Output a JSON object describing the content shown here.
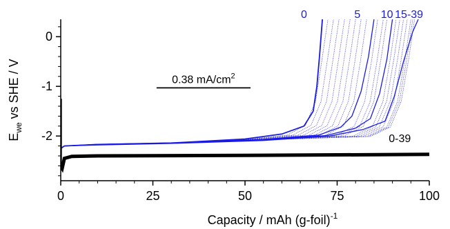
{
  "chart_data": {
    "type": "line",
    "xlabel": "Capacity / mAh (g-foil)",
    "xlabel_sup": "-1",
    "ylabel_main": "E",
    "ylabel_sub": "we",
    "ylabel_rest": " vs SHE / V",
    "xlim": [
      0,
      100
    ],
    "ylim": [
      -2.9,
      0.35
    ],
    "x_ticks": [
      0,
      25,
      50,
      75,
      100
    ],
    "x_tick_labels": [
      "0",
      "25",
      "50",
      "75",
      "100"
    ],
    "y_ticks": [
      0,
      -1,
      -2
    ],
    "y_tick_labels": [
      "0",
      "-1",
      "-2"
    ],
    "grid": false,
    "colors": {
      "blue": "#1a1ae6",
      "black": "#000000"
    },
    "scale_bar": {
      "label_main": "0.38 mA/cm",
      "label_sup": "2",
      "x_start": 26,
      "x_end": 51.5,
      "y": -1.03
    },
    "series": [
      {
        "label": "0",
        "color": "#1a1ae6",
        "end_capacity": 71,
        "points": [
          [
            0,
            -2.25
          ],
          [
            1,
            -2.2
          ],
          [
            10,
            -2.17
          ],
          [
            30,
            -2.14
          ],
          [
            50,
            -2.06
          ],
          [
            60,
            -1.96
          ],
          [
            66,
            -1.8
          ],
          [
            68.5,
            -1.5
          ],
          [
            69.5,
            -1.0
          ],
          [
            70.2,
            -0.4
          ],
          [
            71,
            0.35
          ]
        ]
      },
      {
        "label": "5",
        "color": "#1a1ae6",
        "end_capacity": 85,
        "points": [
          [
            0,
            -2.25
          ],
          [
            1,
            -2.2
          ],
          [
            10,
            -2.17
          ],
          [
            30,
            -2.14
          ],
          [
            55,
            -2.07
          ],
          [
            70,
            -1.98
          ],
          [
            76,
            -1.82
          ],
          [
            79,
            -1.6
          ],
          [
            81.5,
            -1.1
          ],
          [
            83.5,
            -0.4
          ],
          [
            85,
            0.35
          ]
        ]
      },
      {
        "label": "10",
        "color": "#1a1ae6",
        "end_capacity": 90,
        "points": [
          [
            0,
            -2.25
          ],
          [
            1,
            -2.2
          ],
          [
            10,
            -2.17
          ],
          [
            30,
            -2.14
          ],
          [
            55,
            -2.08
          ],
          [
            72,
            -1.99
          ],
          [
            80,
            -1.84
          ],
          [
            84,
            -1.65
          ],
          [
            86.5,
            -1.15
          ],
          [
            88.5,
            -0.45
          ],
          [
            90,
            0.35
          ]
        ]
      },
      {
        "label": "15-39",
        "color": "#1a1ae6",
        "end_capacity": 97,
        "points": [
          [
            0,
            -2.25
          ],
          [
            1,
            -2.2
          ],
          [
            10,
            -2.18
          ],
          [
            30,
            -2.15
          ],
          [
            55,
            -2.09
          ],
          [
            73,
            -2.0
          ],
          [
            82,
            -1.87
          ],
          [
            88,
            -1.7
          ],
          [
            90.5,
            -1.2
          ],
          [
            93,
            -0.5
          ],
          [
            95.5,
            0.1
          ],
          [
            97,
            0.35
          ]
        ]
      },
      {
        "label": "0-39",
        "color": "#000000",
        "end_capacity": 100,
        "points": [
          [
            0,
            -2.6
          ],
          [
            0.4,
            -2.65
          ],
          [
            1,
            -2.45
          ],
          [
            3,
            -2.41
          ],
          [
            10,
            -2.4
          ],
          [
            50,
            -2.39
          ],
          [
            100,
            -2.37
          ]
        ]
      }
    ],
    "intermediate_curve_ends": [
      72.5,
      74,
      75.5,
      77,
      78.5,
      80,
      81.5,
      83,
      86,
      87.5,
      88.5,
      91,
      92,
      93,
      94,
      95,
      95.5,
      96
    ]
  }
}
